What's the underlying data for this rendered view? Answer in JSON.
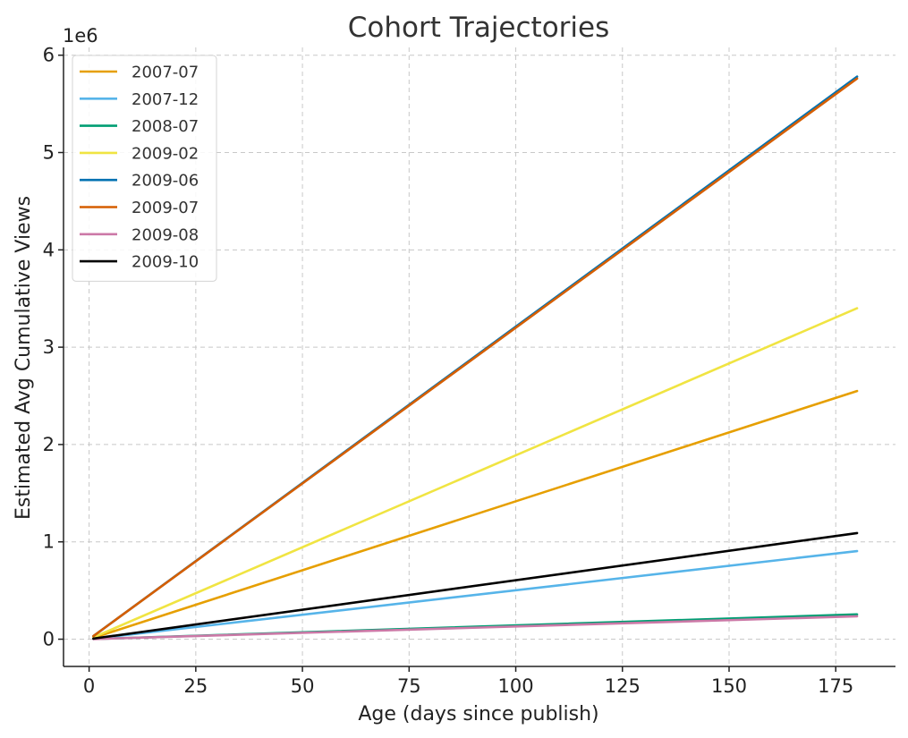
{
  "chart_data": {
    "type": "line",
    "title": "Cohort Trajectories",
    "xlabel": "Age (days since publish)",
    "ylabel": "Estimated Avg Cumulative Views",
    "y_offset_label": "1e6",
    "xlim": [
      -6,
      189
    ],
    "ylim": [
      -280000,
      6080000
    ],
    "x_ticks": [
      0,
      25,
      50,
      75,
      100,
      125,
      150,
      175
    ],
    "x_tick_labels": [
      "0",
      "25",
      "50",
      "75",
      "100",
      "125",
      "150",
      "175"
    ],
    "y_ticks": [
      0,
      1000000,
      2000000,
      3000000,
      4000000,
      5000000,
      6000000
    ],
    "y_tick_labels": [
      "0",
      "1",
      "2",
      "3",
      "4",
      "5",
      "6"
    ],
    "grid": true,
    "legend_position": "top-left",
    "series": [
      {
        "name": "2007-07",
        "color": "#E69F00",
        "x": [
          1,
          180
        ],
        "y": [
          14000,
          2550000
        ]
      },
      {
        "name": "2007-12",
        "color": "#56B4E9",
        "x": [
          1,
          180
        ],
        "y": [
          5000,
          905000
        ]
      },
      {
        "name": "2008-07",
        "color": "#009E73",
        "x": [
          1,
          180
        ],
        "y": [
          1400,
          255000
        ]
      },
      {
        "name": "2009-02",
        "color": "#F0E442",
        "x": [
          1,
          180
        ],
        "y": [
          19000,
          3400000
        ]
      },
      {
        "name": "2009-06",
        "color": "#0072B2",
        "x": [
          1,
          180
        ],
        "y": [
          32000,
          5780000
        ]
      },
      {
        "name": "2009-07",
        "color": "#D55E00",
        "x": [
          1,
          180
        ],
        "y": [
          32000,
          5760000
        ]
      },
      {
        "name": "2009-08",
        "color": "#CC79A7",
        "x": [
          1,
          180
        ],
        "y": [
          1300,
          235000
        ]
      },
      {
        "name": "2009-10",
        "color": "#000000",
        "x": [
          1,
          180
        ],
        "y": [
          6000,
          1090000
        ]
      }
    ]
  }
}
